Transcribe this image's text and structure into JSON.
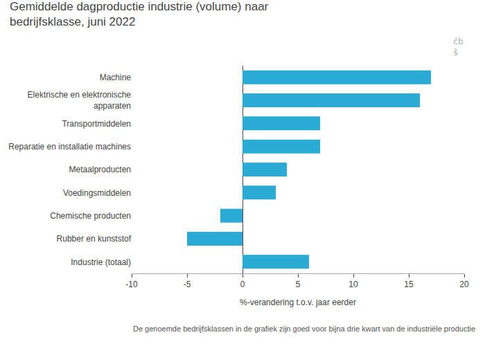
{
  "chart_data": {
    "type": "bar",
    "orientation": "horizontal",
    "title": "Gemiddelde dagproductie industrie (volume) naar\nbedrijfsklasse, juni 2022",
    "categories": [
      "Machine",
      "Elektrische en elektronische\napparaten",
      "Transportmiddelen",
      "Reparatie en installatie machines",
      "Metaalproducten",
      "Voedingsmiddelen",
      "Chemische producten",
      "Rubber en kunststof",
      "Industrie (totaal)"
    ],
    "values": [
      17.0,
      16.0,
      7.0,
      7.0,
      4.0,
      3.0,
      -2.0,
      -5.0,
      6.0
    ],
    "color": "#29ABD4",
    "xlabel": "%-verandering t.o.v. jaar eerder",
    "xlim": [
      -10,
      20
    ],
    "xticks": [
      -10,
      -5,
      0,
      5,
      10,
      15,
      20
    ],
    "grid": false,
    "annotations": [
      "De genoemde bedrijfsklassen in de grafiek zijn goed voor bijna drie kwart van de industriële productie",
      "ĉb\nŝ"
    ]
  }
}
